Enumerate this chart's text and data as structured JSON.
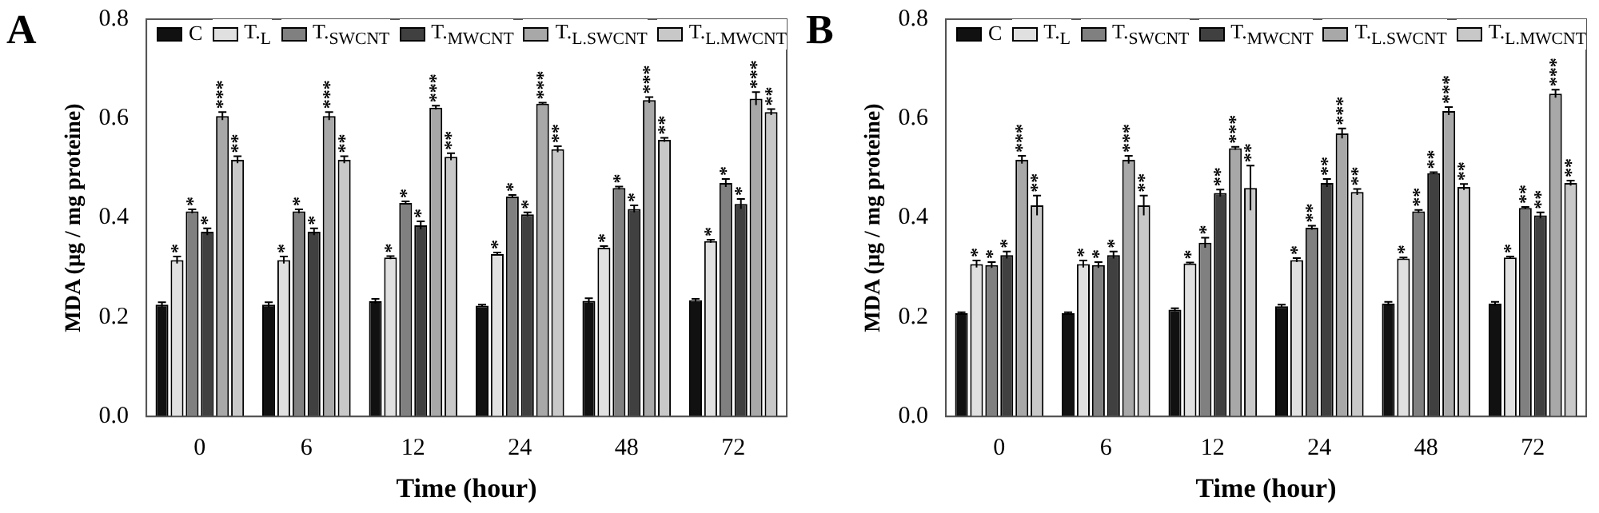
{
  "chart_data": [
    {
      "type": "bar",
      "title": "A",
      "xlabel": "Time (hour)",
      "ylabel": "MDA (µg / mg proteine)",
      "categories": [
        "0",
        "6",
        "12",
        "24",
        "48",
        "72"
      ],
      "ylim": [
        0,
        0.8
      ],
      "yticks": [
        {
          "value": 0,
          "label": "0.0"
        },
        {
          "value": 0.2,
          "label": "0.2"
        },
        {
          "value": 0.4,
          "label": "0.4"
        },
        {
          "value": 0.6,
          "label": "0.6"
        },
        {
          "value": 0.8,
          "label": "0.8"
        }
      ],
      "grid": false,
      "legend": "top",
      "series": [
        {
          "name": "C",
          "color": "#111111",
          "values": [
            0.225,
            0.225,
            0.232,
            0.223,
            0.233,
            0.234
          ],
          "errors": [
            0.005,
            0.005,
            0.005,
            0.002,
            0.005,
            0.003
          ]
        },
        {
          "name": "T.$_{L}$",
          "color": "#e0e0e0",
          "values": [
            0.315,
            0.315,
            0.32,
            0.327,
            0.34,
            0.353
          ],
          "errors": [
            0.007,
            0.007,
            0.003,
            0.003,
            0.003,
            0.003
          ],
          "value_labels": [
            "*",
            "*",
            "*",
            "*",
            "*",
            "*"
          ]
        },
        {
          "name": "T.$_{SWCNT}$",
          "color": "#808080",
          "values": [
            0.413,
            0.413,
            0.43,
            0.443,
            0.46,
            0.47
          ],
          "errors": [
            0.004,
            0.004,
            0.003,
            0.003,
            0.003,
            0.008
          ],
          "value_labels": [
            "*",
            "*",
            "*",
            "*",
            "*",
            "*"
          ]
        },
        {
          "name": "T.$_{MWCNT}$",
          "color": "#404040",
          "values": [
            0.372,
            0.372,
            0.385,
            0.407,
            0.418,
            0.428
          ],
          "errors": [
            0.007,
            0.007,
            0.008,
            0.004,
            0.007,
            0.01
          ],
          "value_labels": [
            "*",
            "*",
            "*",
            "*",
            "*",
            "*"
          ]
        },
        {
          "name": "T.$_{L.SWCNT}$",
          "color": "#a8a8a8",
          "values": [
            0.605,
            0.605,
            0.622,
            0.63,
            0.637,
            0.64
          ],
          "errors": [
            0.008,
            0.008,
            0.004,
            0.002,
            0.006,
            0.013
          ],
          "value_labels": [
            "***",
            "***",
            "***",
            "***",
            "***",
            "***"
          ]
        },
        {
          "name": "T.$_{L.MWCNT}$",
          "color": "#c8c8c8",
          "values": [
            0.517,
            0.517,
            0.523,
            0.538,
            0.557,
            0.613
          ],
          "errors": [
            0.007,
            0.007,
            0.007,
            0.006,
            0.004,
            0.006
          ],
          "value_labels": [
            "**",
            "**",
            "**",
            "**",
            "**",
            "**"
          ]
        }
      ]
    },
    {
      "type": "bar",
      "title": "B",
      "xlabel": "Time (hour)",
      "ylabel": "MDA (µg / mg proteine)",
      "categories": [
        "0",
        "6",
        "12",
        "24",
        "48",
        "72"
      ],
      "ylim": [
        0,
        0.8
      ],
      "yticks": [
        {
          "value": 0,
          "label": "0.0"
        },
        {
          "value": 0.2,
          "label": "0.2"
        },
        {
          "value": 0.4,
          "label": "0.4"
        },
        {
          "value": 0.6,
          "label": "0.6"
        },
        {
          "value": 0.8,
          "label": "0.8"
        }
      ],
      "grid": false,
      "legend": "top",
      "series": [
        {
          "name": "C",
          "color": "#111111",
          "values": [
            0.208,
            0.208,
            0.215,
            0.222,
            0.227,
            0.227
          ],
          "errors": [
            0.002,
            0.002,
            0.003,
            0.003,
            0.004,
            0.004
          ]
        },
        {
          "name": "T.$_{L}$",
          "color": "#e0e0e0",
          "values": [
            0.307,
            0.307,
            0.308,
            0.315,
            0.318,
            0.32
          ],
          "errors": [
            0.007,
            0.007,
            0.002,
            0.004,
            0.002,
            0.002
          ],
          "value_labels": [
            "*",
            "*",
            "*",
            "*",
            "*",
            "*"
          ]
        },
        {
          "name": "T.$_{SWCNT}$",
          "color": "#808080",
          "values": [
            0.305,
            0.305,
            0.35,
            0.38,
            0.413,
            0.42
          ],
          "errors": [
            0.006,
            0.006,
            0.01,
            0.004,
            0.003,
            0.002
          ],
          "value_labels": [
            "*",
            "*",
            "*",
            "**",
            "**",
            "**"
          ]
        },
        {
          "name": "T.$_{MWCNT}$",
          "color": "#404040",
          "values": [
            0.325,
            0.325,
            0.45,
            0.47,
            0.49,
            0.405
          ],
          "errors": [
            0.007,
            0.007,
            0.007,
            0.008,
            0.002,
            0.006
          ],
          "value_labels": [
            "*",
            "*",
            "**",
            "**",
            "**",
            "**"
          ]
        },
        {
          "name": "T.$_{L.SWCNT}$",
          "color": "#a8a8a8",
          "values": [
            0.517,
            0.517,
            0.54,
            0.57,
            0.615,
            0.65
          ],
          "errors": [
            0.008,
            0.008,
            0.003,
            0.01,
            0.008,
            0.008
          ],
          "value_labels": [
            "***",
            "***",
            "***",
            "***",
            "***",
            "***"
          ]
        },
        {
          "name": "T.$_{L.MWCNT}$",
          "color": "#c8c8c8",
          "values": [
            0.425,
            0.425,
            0.46,
            0.452,
            0.462,
            0.47
          ],
          "errors": [
            0.02,
            0.02,
            0.045,
            0.006,
            0.006,
            0.005
          ],
          "value_labels": [
            "**",
            "**",
            "**",
            "**",
            "**",
            "**"
          ]
        }
      ]
    }
  ]
}
